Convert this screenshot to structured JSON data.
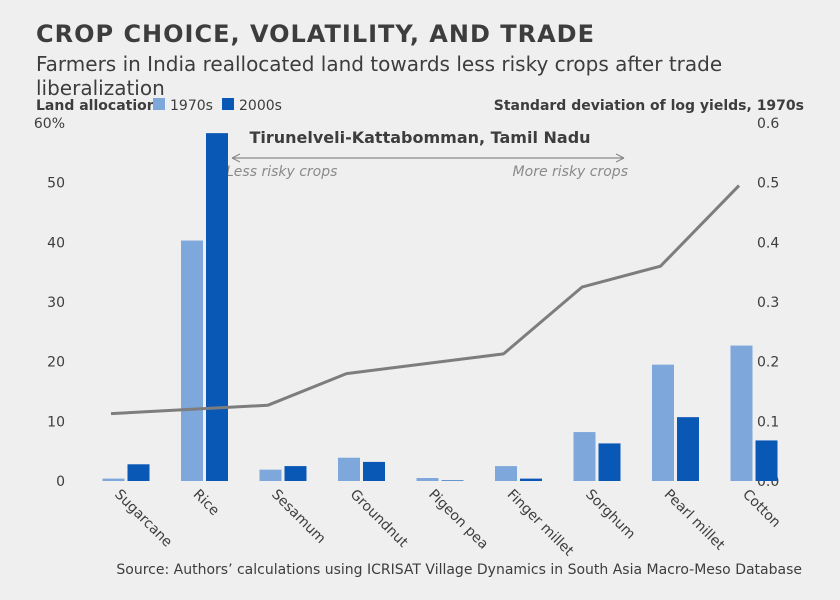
{
  "header": {
    "title": "CROP CHOICE, VOLATILITY, AND TRADE",
    "subtitle": "Farmers in India reallocated land towards less risky crops after trade liberalization"
  },
  "footer": {
    "source": "Source: Authors’ calculations using ICRISAT Village Dynamics in South Asia Macro-Meso Database"
  },
  "colors": {
    "series_1970s": "#7ea7dc",
    "series_2000s": "#0a58b5",
    "line": "#7d7d7d",
    "annotation": "#8a8a8a"
  },
  "chart_data": {
    "type": "bar",
    "region_label": "Tirunelveli-Kattabomman, Tamil Nadu",
    "categories": [
      "Sugarcane",
      "Rice",
      "Sesamum",
      "Groundnut",
      "Pigeon pea",
      "Finger millet",
      "Sorghum",
      "Pearl millet",
      "Cotton"
    ],
    "series": [
      {
        "name": "1970s",
        "values": [
          0.4,
          40.3,
          1.9,
          3.9,
          0.5,
          2.5,
          8.2,
          19.5,
          22.7
        ]
      },
      {
        "name": "2000s",
        "values": [
          2.8,
          58.3,
          2.5,
          3.2,
          0.1,
          0.4,
          6.3,
          10.7,
          6.8
        ]
      }
    ],
    "line_series": {
      "name": "Standard deviation of log yields, 1970s",
      "values": [
        0.113,
        null,
        0.127,
        0.18,
        null,
        0.213,
        0.325,
        0.36,
        0.495
      ]
    },
    "left_axis": {
      "label": "Land allocation",
      "ylim": [
        0,
        60
      ],
      "ticks": [
        0,
        10,
        20,
        30,
        40,
        50,
        60
      ],
      "tick_labels": [
        "0",
        "10",
        "20",
        "30",
        "40",
        "50",
        "60%"
      ]
    },
    "right_axis": {
      "label": "Standard deviation of log yields, 1970s",
      "ylim": [
        0,
        0.6
      ],
      "ticks": [
        0,
        0.1,
        0.2,
        0.3,
        0.4,
        0.5,
        0.6
      ],
      "tick_labels": [
        "0.0",
        "0.1",
        "0.2",
        "0.3",
        "0.4",
        "0.5",
        "0.6"
      ]
    },
    "legend": [
      "1970s",
      "2000s"
    ],
    "arrow_annotation": {
      "left_text": "Less risky crops",
      "right_text": "More risky crops"
    }
  }
}
